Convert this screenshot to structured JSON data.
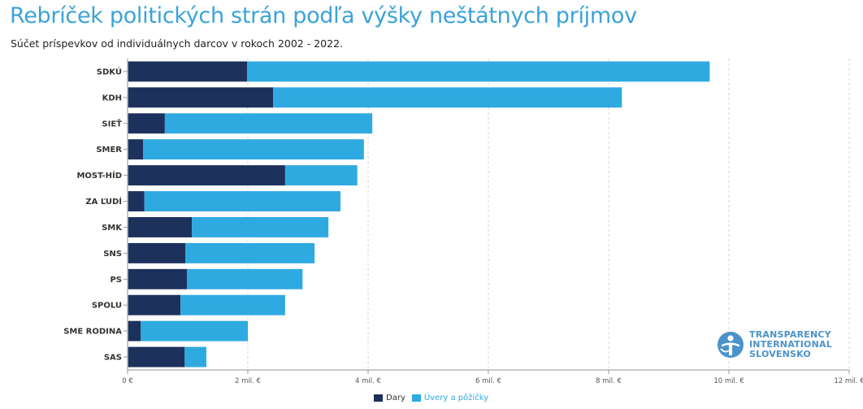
{
  "header": {
    "title": "Rebríček politických strán podľa výšky neštátnych príjmov",
    "subtitle": "Súčet príspevkov od individuálnych darcov v rokoch 2002 - 2022."
  },
  "colors": {
    "dary": "#1c315c",
    "uvery": "#2eaae1",
    "title": "#3aa3d8"
  },
  "logo": {
    "lines": [
      "TRANSPARENCY",
      "INTERNATIONAL",
      "SLOVENSKO"
    ],
    "icon": "transparency-logo-icon"
  },
  "chart_data": {
    "type": "bar",
    "orientation": "horizontal",
    "stacked": true,
    "title": "Rebríček politických strán podľa výšky neštátnych príjmov",
    "subtitle": "Súčet príspevkov od individuálnych darcov v rokoch 2002 - 2022.",
    "unit": "mil. €",
    "categories": [
      "SDKÚ",
      "KDH",
      "SIEŤ",
      "SMER",
      "MOST-HÍD",
      "ZA ĽUDÍ",
      "SMK",
      "SNS",
      "PS",
      "SPOLU",
      "SME RODINA",
      "SAS"
    ],
    "series": [
      {
        "name": "Dary",
        "values": [
          1.99,
          2.42,
          0.62,
          0.26,
          2.62,
          0.28,
          1.07,
          0.96,
          0.99,
          0.88,
          0.22,
          0.95
        ]
      },
      {
        "name": "Úvery a pôžičky",
        "values": [
          7.69,
          5.8,
          3.45,
          3.67,
          1.2,
          3.26,
          2.27,
          2.15,
          1.92,
          1.74,
          1.78,
          0.36
        ]
      }
    ],
    "xlim": [
      0,
      12
    ],
    "xticks": [
      0,
      2,
      4,
      6,
      8,
      10,
      12
    ],
    "xtick_labels": [
      "0 €",
      "2 mil. €",
      "4 mil. €",
      "6 mil. €",
      "8 mil. €",
      "10 mil. €",
      "12 mil. €"
    ],
    "grid": "vertical dashed",
    "legend": "bottom-center"
  }
}
